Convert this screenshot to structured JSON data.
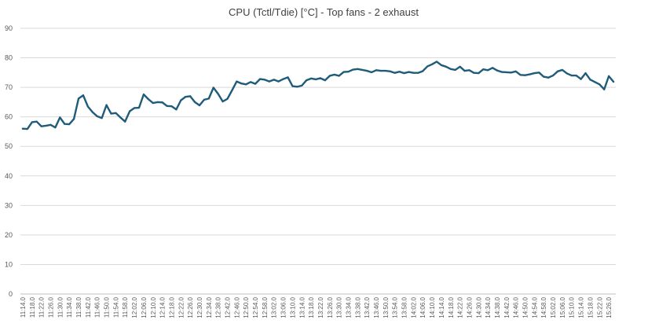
{
  "chart_data": {
    "type": "line",
    "title": "CPU (Tctl/Tdie) [°C] - Top fans - 2 exhaust",
    "xlabel": "",
    "ylabel": "",
    "ylim": [
      0,
      90
    ],
    "yticks": [
      0,
      10,
      20,
      30,
      40,
      50,
      60,
      70,
      80,
      90
    ],
    "grid": true,
    "legend": "none",
    "colors": {
      "series": "#1f5c7a",
      "grid": "#d9d9d9",
      "text": "#595959"
    },
    "x_tick_labels": [
      "11:14.0",
      "11:18.0",
      "11:22.0",
      "11:26.0",
      "11:30.0",
      "11:34.0",
      "11:38.0",
      "11:42.0",
      "11:46.0",
      "11:50.0",
      "11:54.0",
      "11:58.0",
      "12:02.0",
      "12:06.0",
      "12:10.0",
      "12:14.0",
      "12:18.0",
      "12:22.0",
      "12:26.0",
      "12:30.0",
      "12:34.0",
      "12:38.0",
      "12:42.0",
      "12:46.0",
      "12:50.0",
      "12:54.0",
      "12:58.0",
      "13:02.0",
      "13:06.0",
      "13:10.0",
      "13:14.0",
      "13:18.0",
      "13:22.0",
      "13:26.0",
      "13:30.0",
      "13:34.0",
      "13:38.0",
      "13:42.0",
      "13:46.0",
      "13:50.0",
      "13:54.0",
      "13:58.0",
      "14:02.0",
      "14:06.0",
      "14:10.0",
      "14:14.0",
      "14:18.0",
      "14:22.0",
      "14:26.0",
      "14:30.0",
      "14:34.0",
      "14:38.0",
      "14:42.0",
      "14:46.0",
      "14:50.0",
      "14:54.0",
      "14:58.0",
      "15:02.0",
      "15:06.0",
      "15:10.0",
      "15:14.0",
      "15:18.0",
      "15:22.0",
      "15:26.0"
    ],
    "series": [
      {
        "values": [
          56.0,
          55.9,
          58.2,
          58.4,
          56.8,
          57.0,
          57.3,
          56.4,
          59.8,
          57.6,
          57.5,
          59.3,
          66.2,
          67.3,
          63.5,
          61.6,
          60.2,
          59.6,
          64.0,
          61.1,
          61.3,
          59.8,
          58.4,
          61.9,
          63.0,
          63.1,
          67.6,
          66.0,
          64.7,
          65.0,
          64.9,
          63.7,
          63.6,
          62.5,
          65.6,
          66.8,
          67.0,
          65.0,
          63.9,
          65.8,
          66.2,
          69.9,
          67.8,
          65.2,
          66.1,
          69.0,
          72.0,
          71.3,
          71.0,
          71.8,
          71.2,
          72.8,
          72.6,
          72.0,
          72.6,
          72.0,
          72.8,
          73.4,
          70.4,
          70.2,
          70.6,
          72.4,
          73.0,
          72.7,
          73.1,
          72.4,
          73.9,
          74.3,
          73.9,
          75.2,
          75.3,
          76.0,
          76.2,
          75.9,
          75.6,
          75.1,
          75.8,
          75.6,
          75.6,
          75.4,
          74.9,
          75.3,
          74.8,
          75.2,
          74.9,
          74.9,
          75.5,
          77.1,
          77.8,
          78.7,
          77.5,
          77.0,
          76.2,
          75.9,
          77.0,
          75.6,
          75.8,
          74.9,
          74.8,
          76.1,
          75.8,
          76.6,
          75.7,
          75.2,
          75.1,
          75.0,
          75.4,
          74.2,
          74.1,
          74.4,
          74.8,
          75.0,
          73.6,
          73.3,
          74.0,
          75.4,
          75.9,
          74.7,
          74.0,
          74.0,
          72.8,
          74.8,
          72.6,
          71.8,
          71.0,
          69.3,
          73.8,
          71.9
        ]
      }
    ]
  }
}
